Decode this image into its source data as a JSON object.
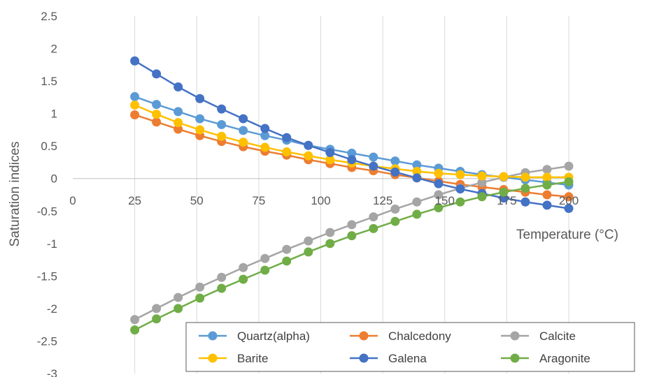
{
  "chart_data": {
    "type": "line",
    "xlabel": "Temperature (°C)",
    "ylabel": "Saturation indices",
    "xlim": [
      0,
      200
    ],
    "ylim": [
      -3,
      2.5
    ],
    "x_ticks": [
      "0",
      "25",
      "50",
      "75",
      "100",
      "125",
      "150",
      "175",
      "200"
    ],
    "y_ticks": [
      "2.5",
      "2",
      "1.5",
      "1",
      "0.5",
      "0",
      "-0.5",
      "-1",
      "-1.5",
      "-2",
      "-2.5",
      "-3"
    ],
    "grid": "vertical",
    "legend_position": "bottom-right",
    "x": [
      25,
      33.75,
      42.5,
      51.25,
      60,
      68.75,
      77.5,
      86.25,
      95,
      103.75,
      112.5,
      121.25,
      130,
      138.75,
      147.5,
      156.25,
      165,
      173.75,
      182.5,
      191.25,
      200
    ],
    "series": [
      {
        "name": "Quartz(alpha)",
        "color": "#5b9bd5",
        "values": [
          1.26,
          1.14,
          1.03,
          0.92,
          0.83,
          0.74,
          0.66,
          0.59,
          0.51,
          0.45,
          0.39,
          0.33,
          0.27,
          0.21,
          0.16,
          0.11,
          0.06,
          0.02,
          -0.02,
          -0.06,
          -0.1
        ]
      },
      {
        "name": "Chalcedony",
        "color": "#ed7d31",
        "values": [
          0.98,
          0.87,
          0.76,
          0.66,
          0.57,
          0.49,
          0.42,
          0.36,
          0.29,
          0.23,
          0.17,
          0.12,
          0.06,
          0.01,
          -0.04,
          -0.09,
          -0.13,
          -0.17,
          -0.21,
          -0.25,
          -0.28
        ]
      },
      {
        "name": "Calcite",
        "color": "#a5a5a5",
        "values": [
          -2.17,
          -2.0,
          -1.83,
          -1.67,
          -1.52,
          -1.37,
          -1.23,
          -1.09,
          -0.96,
          -0.83,
          -0.71,
          -0.59,
          -0.47,
          -0.36,
          -0.25,
          -0.15,
          -0.06,
          0.02,
          0.09,
          0.14,
          0.19
        ]
      },
      {
        "name": "Barite",
        "color": "#ffc000",
        "values": [
          1.13,
          0.99,
          0.86,
          0.75,
          0.65,
          0.56,
          0.48,
          0.41,
          0.35,
          0.29,
          0.24,
          0.19,
          0.15,
          0.11,
          0.08,
          0.06,
          0.04,
          0.03,
          0.02,
          0.02,
          0.02
        ]
      },
      {
        "name": "Galena",
        "color": "#4472c4",
        "values": [
          1.81,
          1.61,
          1.41,
          1.23,
          1.07,
          0.92,
          0.77,
          0.63,
          0.51,
          0.4,
          0.29,
          0.19,
          0.1,
          0.01,
          -0.08,
          -0.16,
          -0.23,
          -0.3,
          -0.36,
          -0.41,
          -0.46
        ]
      },
      {
        "name": "Aragonite",
        "color": "#70ad47",
        "values": [
          -2.33,
          -2.16,
          -2.0,
          -1.84,
          -1.69,
          -1.55,
          -1.41,
          -1.27,
          -1.13,
          -1.0,
          -0.88,
          -0.77,
          -0.66,
          -0.55,
          -0.45,
          -0.36,
          -0.28,
          -0.21,
          -0.15,
          -0.1,
          -0.05
        ]
      }
    ]
  }
}
